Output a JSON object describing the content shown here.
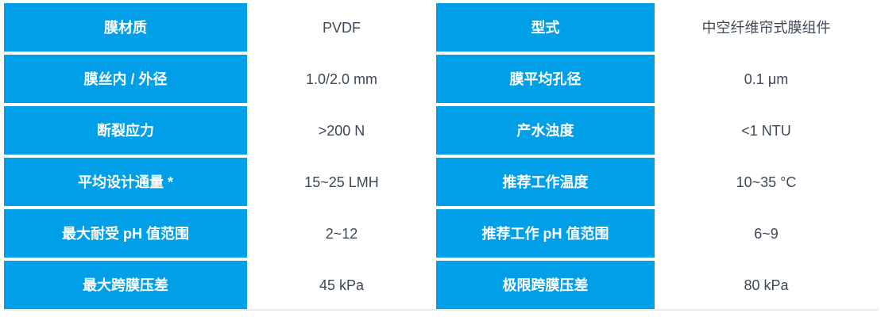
{
  "colors": {
    "accent_blue": "#009fe8",
    "row_shade": "#e6e6e6",
    "label_text": "#ffffff",
    "value_text": "#3d4856",
    "bottom_line": "#e9e9e9"
  },
  "table": {
    "rows": [
      {
        "label_left": "膜材质",
        "value_left": "PVDF",
        "label_right": "型式",
        "value_right": "中空纤维帘式膜组件"
      },
      {
        "label_left": "膜丝内 / 外径",
        "value_left": "1.0/2.0 mm",
        "label_right": "膜平均孔径",
        "value_right": "0.1 μm"
      },
      {
        "label_left": "断裂应力",
        "value_left": ">200 N",
        "label_right": "产水浊度",
        "value_right": "<1 NTU"
      },
      {
        "label_left": "平均设计通量 *",
        "value_left": "15~25 LMH",
        "label_right": "推荐工作温度",
        "value_right": "10~35 °C"
      },
      {
        "label_left": "最大耐受 pH 值范围",
        "value_left": "2~12",
        "label_right": "推荐工作 pH 值范围",
        "value_right": "6~9"
      },
      {
        "label_left": "最大跨膜压差",
        "value_left": "45 kPa",
        "label_right": "极限跨膜压差",
        "value_right": "80 kPa"
      }
    ]
  }
}
